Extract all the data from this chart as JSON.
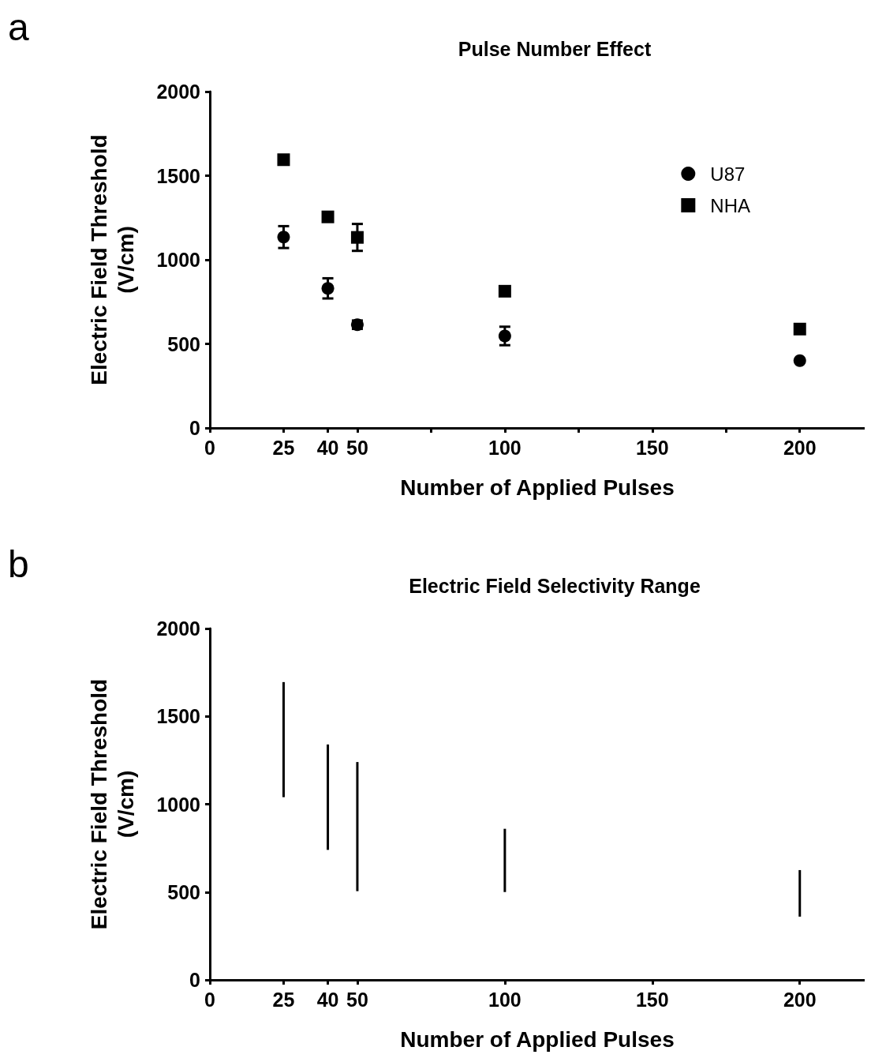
{
  "chart_data": [
    {
      "type": "scatter",
      "title": "Pulse Number Effect",
      "xlabel": "Number of Applied Pulses",
      "ylabel": "Electric Field Threshold (V/cm)",
      "annotations": [
        "a"
      ],
      "x": [
        25,
        40,
        50,
        100,
        200
      ],
      "series": [
        {
          "name": "U87",
          "color": "#000000",
          "marker": "circle",
          "values": [
            1135,
            830,
            614,
            547,
            400
          ],
          "errors": [
            65,
            60,
            25,
            55,
            null
          ]
        },
        {
          "name": "NHA",
          "color": "#000000",
          "marker": "square",
          "values": [
            1595,
            1255,
            1133,
            813,
            588
          ],
          "errors": [
            null,
            null,
            80,
            null,
            null
          ]
        }
      ],
      "xlim": [
        0,
        222
      ],
      "xticks": [
        0,
        25,
        40,
        50,
        {
          "value": 75,
          "label": null
        },
        100,
        {
          "value": 125,
          "label": null
        },
        150,
        {
          "value": 175,
          "label": null
        },
        200
      ],
      "ylim": [
        0,
        2000
      ],
      "yticks": [
        0,
        500,
        1000,
        1500,
        2000
      ],
      "legend": "top right"
    },
    {
      "type": "bar",
      "title": "Electric Field Selectivity Range",
      "xlabel": "Number of Applied Pulses",
      "ylabel": "Electric Field Threshold (V/cm)",
      "annotations": [
        "b"
      ],
      "x": [
        25,
        40,
        50,
        100,
        200
      ],
      "series": [
        {
          "color": "#000000",
          "base": [
            1040,
            740,
            505,
            500,
            360
          ],
          "values": [
            655,
            600,
            735,
            360,
            265
          ]
        }
      ],
      "xlim": [
        0,
        222
      ],
      "xticks": [
        0,
        25,
        40,
        50,
        100,
        150,
        200
      ],
      "ylim": [
        0,
        2000
      ],
      "yticks": [
        0,
        500,
        1000,
        1500,
        2000
      ]
    }
  ]
}
